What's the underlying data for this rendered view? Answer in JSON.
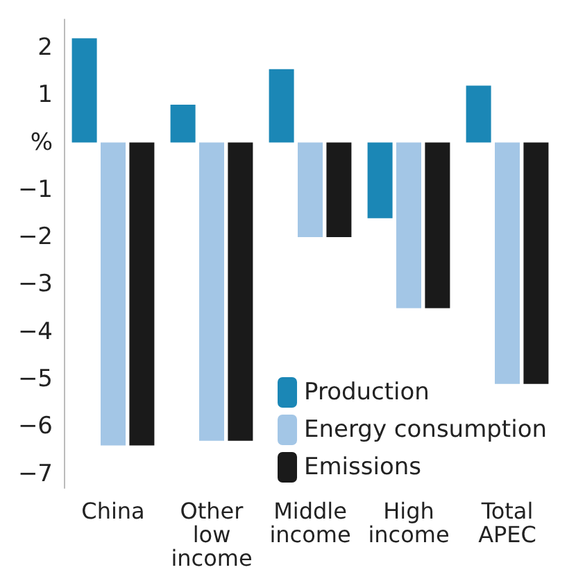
{
  "chart_data": {
    "type": "bar",
    "categories": [
      "China",
      "Other\nlow\nincome",
      "Middle\nincome",
      "High\nincome",
      "Total\nAPEC"
    ],
    "series": [
      {
        "name": "Production",
        "color": "#1b87b6",
        "values": [
          2.2,
          0.8,
          1.55,
          -1.6,
          1.2
        ]
      },
      {
        "name": "Energy consumption",
        "color": "#a3c6e6",
        "values": [
          -6.4,
          -6.3,
          -2.0,
          -3.5,
          -5.1
        ]
      },
      {
        "name": "Emissions",
        "color": "#1a1a1a",
        "values": [
          -6.4,
          -6.3,
          -2.0,
          -3.5,
          -5.1
        ]
      }
    ],
    "ylim": [
      -7.3,
      2.6
    ],
    "yticks": [
      2,
      1,
      {
        "value": 0,
        "label": "%"
      },
      {
        "value": -1,
        "label": "−1"
      },
      {
        "value": -2,
        "label": "−2"
      },
      {
        "value": -3,
        "label": "−3"
      },
      {
        "value": -4,
        "label": "−4"
      },
      {
        "value": -5,
        "label": "−5"
      },
      {
        "value": -6,
        "label": "−6"
      },
      {
        "value": -7,
        "label": "−7"
      }
    ],
    "grid": false,
    "legend": "bottom right"
  }
}
